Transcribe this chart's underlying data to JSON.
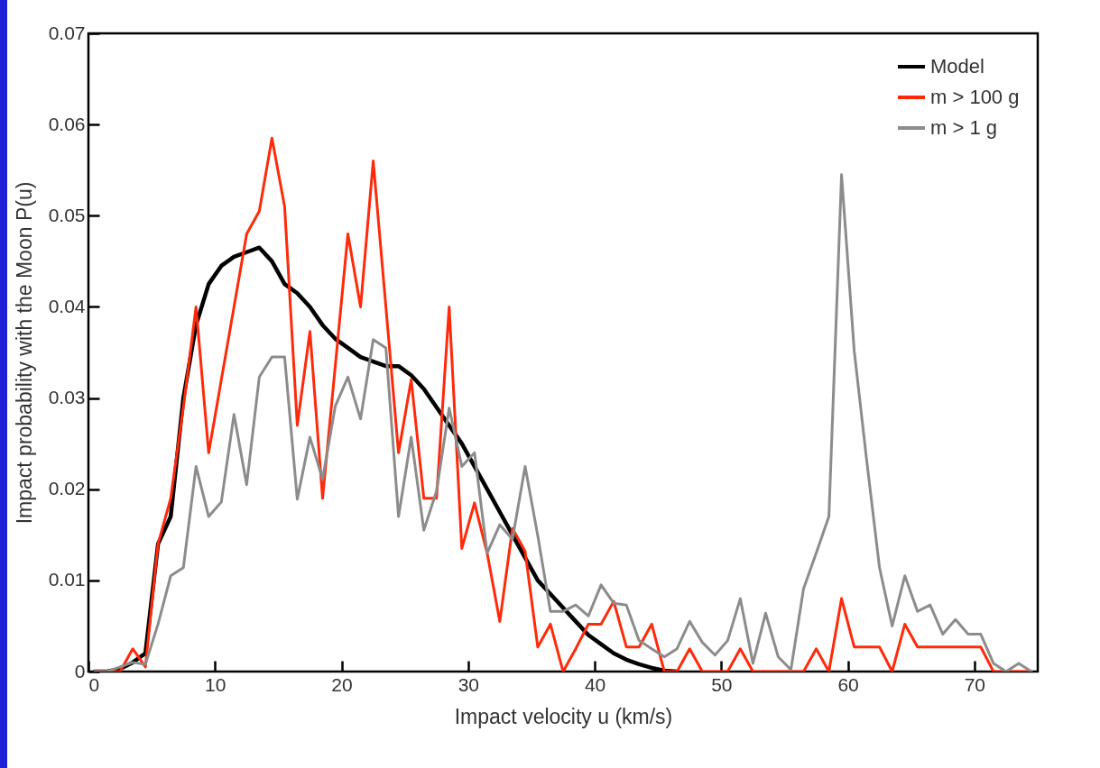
{
  "chart_data": {
    "type": "line",
    "xlabel": "Impact velocity u (km/s)",
    "ylabel": "Impact probability with the Moon P(u)",
    "x": [
      0.5,
      1.5,
      2.5,
      3.5,
      4.5,
      5.5,
      6.5,
      7.5,
      8.5,
      9.5,
      10.5,
      11.5,
      12.5,
      13.5,
      14.5,
      15.5,
      16.5,
      17.5,
      18.5,
      19.5,
      20.5,
      21.5,
      22.5,
      23.5,
      24.5,
      25.5,
      26.5,
      27.5,
      28.5,
      29.5,
      30.5,
      31.5,
      32.5,
      33.5,
      34.5,
      35.5,
      36.5,
      37.5,
      38.5,
      39.5,
      40.5,
      41.5,
      42.5,
      43.5,
      44.5,
      45.5,
      46.5,
      47.5,
      48.5,
      49.5,
      50.5,
      51.5,
      52.5,
      53.5,
      54.5,
      55.5,
      56.5,
      57.5,
      58.5,
      59.5,
      60.5,
      61.5,
      62.5,
      63.5,
      64.5,
      65.5,
      66.5,
      67.5,
      68.5,
      69.5,
      70.5,
      71.5,
      72.5,
      73.5,
      74.5
    ],
    "series": [
      {
        "name": "Model",
        "color": "#000000",
        "x": [
          0.5,
          1.5,
          2.5,
          3.5,
          4.5,
          5.5,
          6.5,
          7.5,
          8.5,
          9.5,
          10.5,
          11.5,
          12.5,
          13.5,
          14.5,
          15.5,
          16.5,
          17.5,
          18.5,
          19.5,
          20.5,
          21.5,
          22.5,
          23.5,
          24.5,
          25.5,
          26.5,
          27.5,
          28.5,
          29.5,
          30.5,
          31.5,
          32.5,
          33.5,
          34.5,
          35.5,
          36.5,
          37.5,
          38.5,
          39.5,
          40.5,
          41.5,
          42.5,
          43.5,
          44.5,
          45.5,
          46.5
        ],
        "values": [
          0,
          0,
          0.0003,
          0.001,
          0.002,
          0.014,
          0.017,
          0.03,
          0.038,
          0.0425,
          0.0445,
          0.0455,
          0.046,
          0.0465,
          0.045,
          0.0425,
          0.0415,
          0.04,
          0.038,
          0.0365,
          0.0355,
          0.0345,
          0.034,
          0.0335,
          0.0335,
          0.0325,
          0.031,
          0.029,
          0.027,
          0.025,
          0.0225,
          0.02,
          0.0175,
          0.015,
          0.0125,
          0.01,
          0.0085,
          0.007,
          0.0055,
          0.004,
          0.003,
          0.002,
          0.0013,
          0.0008,
          0.0004,
          0.0001,
          0
        ]
      },
      {
        "name": "m > 100 g",
        "color": "#ff2a0a",
        "values": [
          0,
          0,
          0,
          0.0025,
          0.0005,
          0.014,
          0.019,
          0.029,
          0.04,
          0.024,
          0.032,
          0.04,
          0.048,
          0.0505,
          0.0585,
          0.051,
          0.027,
          0.0373,
          0.019,
          0.0335,
          0.048,
          0.04,
          0.056,
          0.04,
          0.024,
          0.032,
          0.019,
          0.019,
          0.04,
          0.0135,
          0.0185,
          0.013,
          0.0055,
          0.0157,
          0.0132,
          0.0027,
          0.0052,
          0,
          0.0025,
          0.0052,
          0.0052,
          0.0077,
          0.0027,
          0.0027,
          0.0052,
          0,
          0,
          0.0025,
          0,
          0,
          0,
          0.0025,
          0,
          0,
          0,
          0,
          0,
          0.0025,
          0,
          0.008,
          0.0027,
          0.0027,
          0.0027,
          0,
          0.0052,
          0.0027,
          0.0027,
          0.0027,
          0.0027,
          0.0027,
          0.0027,
          0,
          0,
          0,
          0
        ]
      },
      {
        "name": "m > 1 g",
        "color": "#8c8c8c",
        "values": [
          0,
          0,
          0.0005,
          0.001,
          0.0008,
          0.0052,
          0.0105,
          0.0114,
          0.0225,
          0.017,
          0.0186,
          0.0282,
          0.0205,
          0.0323,
          0.0345,
          0.0345,
          0.0189,
          0.0257,
          0.0211,
          0.0291,
          0.0323,
          0.0277,
          0.0364,
          0.0355,
          0.017,
          0.0257,
          0.0155,
          0.0198,
          0.0289,
          0.0225,
          0.024,
          0.013,
          0.0161,
          0.0145,
          0.0225,
          0.0149,
          0.0066,
          0.0066,
          0.0073,
          0.0061,
          0.0095,
          0.0075,
          0.0073,
          0.0034,
          0.0025,
          0.0016,
          0.0025,
          0.0055,
          0.0032,
          0.0018,
          0.0034,
          0.008,
          0.0009,
          0.0064,
          0.0016,
          0.0002,
          0.0091,
          0.013,
          0.017,
          0.0545,
          0.0352,
          0.023,
          0.0114,
          0.005,
          0.0105,
          0.0066,
          0.0073,
          0.0041,
          0.0057,
          0.0041,
          0.0041,
          0.0009,
          0,
          0.0009,
          0
        ]
      }
    ],
    "xlim": [
      0,
      75
    ],
    "xticks": [
      0,
      10,
      20,
      30,
      40,
      50,
      60,
      70
    ],
    "ylim": [
      0,
      0.07
    ],
    "yticks": [
      0,
      0.01,
      0.02,
      0.03,
      0.04,
      0.05,
      0.06,
      0.07
    ],
    "legend": "top right",
    "grid": false,
    "marker": "none",
    "line_style": "solid"
  }
}
